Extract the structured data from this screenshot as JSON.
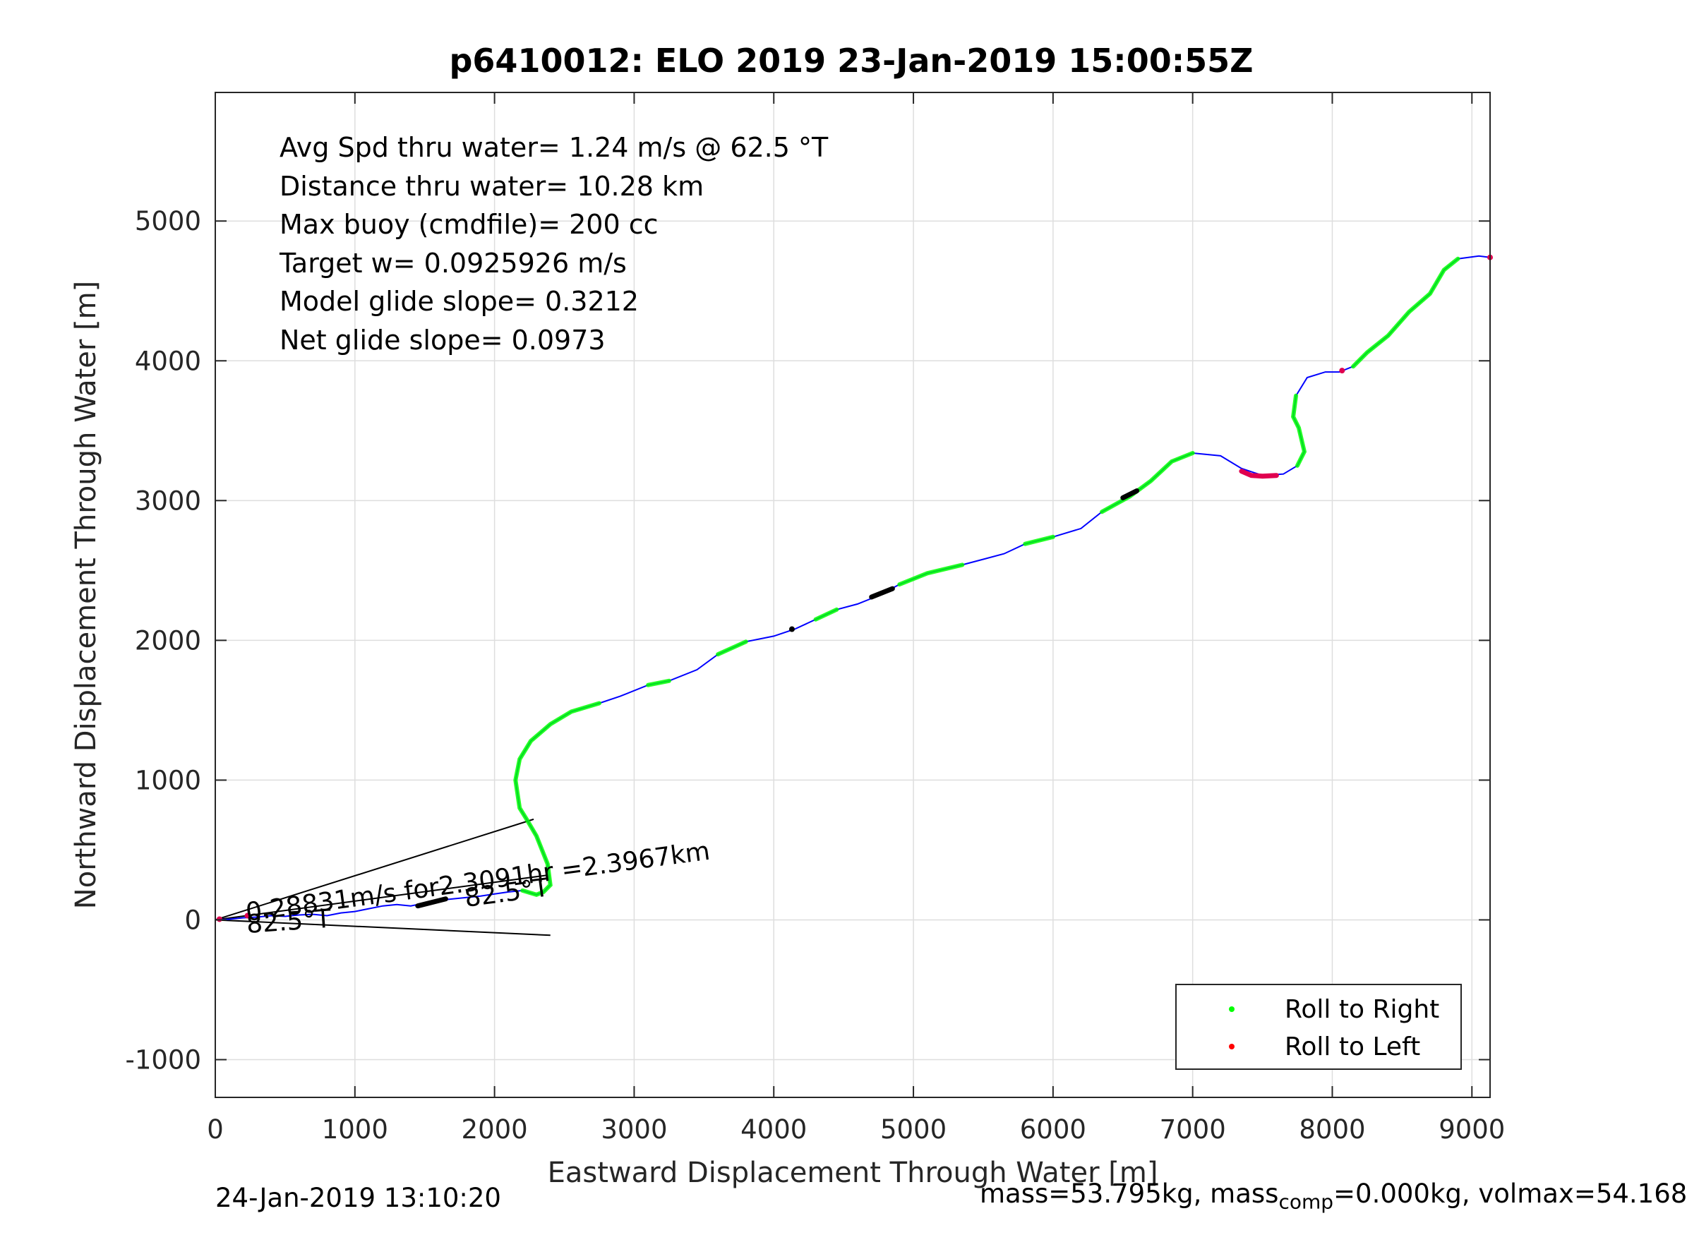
{
  "chart_data": {
    "type": "line",
    "title": "p6410012: ELO 2019 23-Jan-2019 15:00:55Z",
    "xlabel": "Eastward Displacement Through Water [m]",
    "ylabel": "Northward Displacement Through Water [m]",
    "xlim": [
      0,
      9130
    ],
    "ylim": [
      -1270,
      5920
    ],
    "xticks": [
      0,
      1000,
      2000,
      3000,
      4000,
      5000,
      6000,
      7000,
      8000,
      9000
    ],
    "yticks": [
      -1000,
      0,
      1000,
      2000,
      3000,
      4000,
      5000
    ],
    "grid": true,
    "legend_position": "bottom-right",
    "legend": [
      {
        "label": "Roll to Right",
        "color": "#00ff00"
      },
      {
        "label": "Roll to Left",
        "color": "#ff0000"
      }
    ],
    "stats_lines": [
      "Avg Spd thru water=  1.24 m/s @  62.5 °T",
      "Distance thru water= 10.28 km",
      "Max buoy (cmdfile)= 200 cc",
      "Target w= 0.0925926 m/s",
      "Model glide slope= 0.3212",
      "Net glide slope= 0.0973"
    ],
    "current_label": "0.28831m/s for2.3091hr =2.3967km",
    "heading_labels": [
      "82.5°T",
      "82.5°T"
    ],
    "track": [
      [
        0,
        0
      ],
      [
        100,
        5
      ],
      [
        200,
        15
      ],
      [
        300,
        20
      ],
      [
        400,
        30
      ],
      [
        500,
        25
      ],
      [
        600,
        35
      ],
      [
        700,
        40
      ],
      [
        800,
        30
      ],
      [
        900,
        50
      ],
      [
        1000,
        60
      ],
      [
        1100,
        80
      ],
      [
        1200,
        100
      ],
      [
        1300,
        110
      ],
      [
        1400,
        100
      ],
      [
        1500,
        120
      ],
      [
        1600,
        140
      ],
      [
        1700,
        150
      ],
      [
        1800,
        160
      ],
      [
        1900,
        170
      ],
      [
        2000,
        185
      ],
      [
        2100,
        200
      ],
      [
        2200,
        210
      ],
      [
        2300,
        180
      ],
      [
        2350,
        200
      ],
      [
        2400,
        250
      ],
      [
        2380,
        400
      ],
      [
        2300,
        600
      ],
      [
        2230,
        720
      ],
      [
        2180,
        800
      ],
      [
        2150,
        1000
      ],
      [
        2180,
        1150
      ],
      [
        2260,
        1280
      ],
      [
        2400,
        1400
      ],
      [
        2550,
        1490
      ],
      [
        2750,
        1550
      ],
      [
        2900,
        1600
      ],
      [
        3100,
        1680
      ],
      [
        3250,
        1710
      ],
      [
        3450,
        1790
      ],
      [
        3600,
        1900
      ],
      [
        3800,
        1990
      ],
      [
        4000,
        2030
      ],
      [
        4150,
        2080
      ],
      [
        4300,
        2150
      ],
      [
        4450,
        2220
      ],
      [
        4600,
        2260
      ],
      [
        4750,
        2320
      ],
      [
        4900,
        2400
      ],
      [
        5100,
        2480
      ],
      [
        5350,
        2540
      ],
      [
        5500,
        2580
      ],
      [
        5650,
        2620
      ],
      [
        5800,
        2690
      ],
      [
        6000,
        2740
      ],
      [
        6200,
        2800
      ],
      [
        6350,
        2920
      ],
      [
        6550,
        3030
      ],
      [
        6700,
        3140
      ],
      [
        6850,
        3280
      ],
      [
        7000,
        3340
      ],
      [
        7200,
        3320
      ],
      [
        7350,
        3230
      ],
      [
        7500,
        3180
      ],
      [
        7650,
        3190
      ],
      [
        7750,
        3250
      ],
      [
        7800,
        3350
      ],
      [
        7760,
        3520
      ],
      [
        7720,
        3600
      ],
      [
        7740,
        3750
      ],
      [
        7820,
        3880
      ],
      [
        7950,
        3920
      ],
      [
        8050,
        3920
      ],
      [
        8150,
        3960
      ],
      [
        8250,
        4060
      ],
      [
        8400,
        4180
      ],
      [
        8550,
        4350
      ],
      [
        8700,
        4480
      ],
      [
        8800,
        4650
      ],
      [
        8900,
        4730
      ],
      [
        9050,
        4750
      ],
      [
        9130,
        4740
      ]
    ],
    "roll_right_ranges": [
      [
        2150,
        2760
      ],
      [
        3100,
        3270
      ],
      [
        3600,
        3980
      ],
      [
        4300,
        4520
      ],
      [
        4900,
        5350
      ],
      [
        5750,
        6000
      ],
      [
        6300,
        7000
      ],
      [
        7720,
        7800
      ],
      [
        8150,
        8920
      ]
    ],
    "roll_left_segment": [
      [
        7350,
        3210
      ],
      [
        7420,
        3180
      ],
      [
        7500,
        3175
      ],
      [
        7600,
        3180
      ]
    ],
    "roll_left_points": [
      [
        8070,
        3930
      ],
      [
        9130,
        4740
      ],
      [
        30,
        5
      ],
      [
        230,
        30
      ]
    ],
    "black_segments": [
      [
        [
          4700,
          2310
        ],
        [
          4850,
          2370
        ]
      ],
      [
        [
          6500,
          3020
        ],
        [
          6600,
          3070
        ]
      ],
      [
        [
          1450,
          100
        ],
        [
          1650,
          150
        ]
      ]
    ],
    "black_points": [
      [
        4130,
        2080
      ]
    ],
    "surface_lines": [
      [
        [
          0,
          0
        ],
        [
          2280,
          720
        ]
      ],
      [
        [
          0,
          0
        ],
        [
          2400,
          -110
        ]
      ],
      [
        [
          0,
          0
        ],
        [
          2380,
          320
        ]
      ]
    ]
  },
  "footer": {
    "timestamp": "24-Jan-2019 13:10:20",
    "mass_prefix": "mass=53.795kg, mass",
    "mass_sub": "comp",
    "mass_suffix": "=0.000kg, volmax=54.168"
  }
}
